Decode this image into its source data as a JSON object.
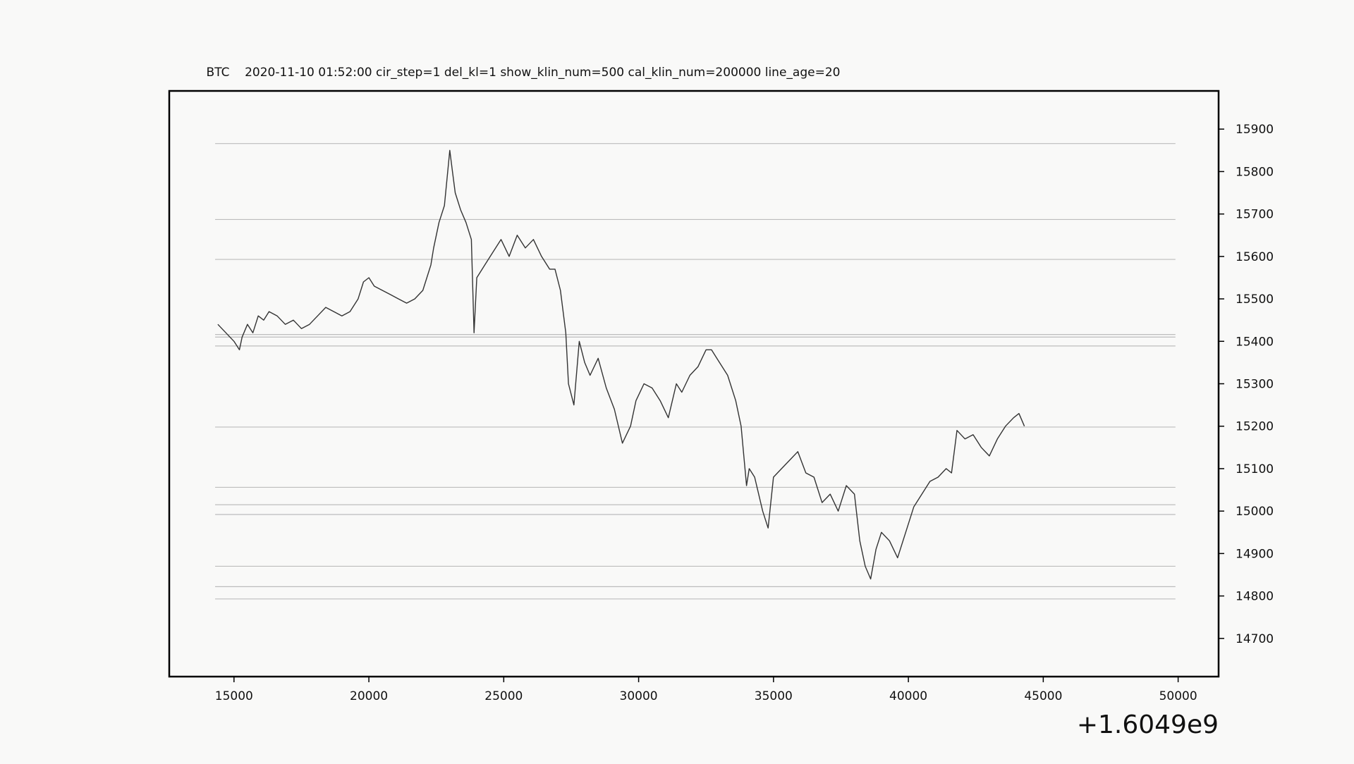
{
  "chart_data": {
    "type": "line",
    "title": "BTC    2020-11-10 01:52:00 cir_step=1 del_kl=1 show_klin_num=500 cal_klin_num=200000 line_age=20",
    "xlabel": "",
    "ylabel": "",
    "x_offset_label": "+1.6049e9",
    "xlim": [
      12600,
      51500
    ],
    "ylim": [
      14610,
      15990
    ],
    "x_ticks": [
      15000,
      20000,
      25000,
      30000,
      35000,
      40000,
      45000,
      50000
    ],
    "x_tick_labels": [
      "15000",
      "20000",
      "25000",
      "30000",
      "35000",
      "40000",
      "45000",
      "50000"
    ],
    "y_ticks": [
      14700,
      14800,
      14900,
      15000,
      15100,
      15200,
      15300,
      15400,
      15500,
      15600,
      15700,
      15800,
      15900
    ],
    "y_tick_labels": [
      "14700",
      "14800",
      "14900",
      "15000",
      "15100",
      "15200",
      "15300",
      "15400",
      "15500",
      "15600",
      "15700",
      "15800",
      "15900"
    ],
    "y_axis_side": "right",
    "grid": false,
    "colors": {
      "series": "#333333",
      "levels": "#bdbdbd",
      "background": "#f9f9f8",
      "frame": "#000000"
    },
    "series": [
      {
        "x": [
          14400,
          14700,
          15000,
          15200,
          15300,
          15500,
          15700,
          15900,
          16100,
          16300,
          16600,
          16900,
          17200,
          17500,
          17800,
          18100,
          18400,
          18700,
          19000,
          19300,
          19600,
          19800,
          20000,
          20200,
          20500,
          20800,
          21100,
          21400,
          21700,
          22000,
          22300,
          22400,
          22600,
          22800,
          23000,
          23100,
          23200,
          23400,
          23600,
          23800,
          23900,
          24000,
          24300,
          24600,
          24900,
          25200,
          25500,
          25800,
          26100,
          26400,
          26700,
          26900,
          27100,
          27300,
          27400,
          27600,
          27800,
          28000,
          28200,
          28500,
          28800,
          29100,
          29400,
          29700,
          29900,
          30200,
          30500,
          30800,
          31100,
          31400,
          31600,
          31900,
          32200,
          32500,
          32700,
          33000,
          33300,
          33600,
          33800,
          34000,
          34100,
          34300,
          34600,
          34800,
          35000,
          35300,
          35600,
          35900,
          36200,
          36500,
          36800,
          37100,
          37400,
          37700,
          38000,
          38200,
          38400,
          38600,
          38800,
          39000,
          39300,
          39600,
          39900,
          40200,
          40500,
          40800,
          41100,
          41400,
          41600,
          41800,
          42100,
          42400,
          42700,
          43000,
          43300,
          43600,
          43900,
          44100,
          44300
        ],
        "y": [
          15440,
          15420,
          15400,
          15380,
          15410,
          15440,
          15420,
          15460,
          15450,
          15470,
          15460,
          15440,
          15450,
          15430,
          15440,
          15460,
          15480,
          15470,
          15460,
          15470,
          15500,
          15540,
          15550,
          15530,
          15520,
          15510,
          15500,
          15490,
          15500,
          15520,
          15580,
          15620,
          15680,
          15720,
          15850,
          15800,
          15750,
          15710,
          15680,
          15640,
          15420,
          15550,
          15580,
          15610,
          15640,
          15600,
          15650,
          15620,
          15640,
          15600,
          15570,
          15570,
          15520,
          15420,
          15300,
          15250,
          15400,
          15350,
          15320,
          15360,
          15290,
          15240,
          15160,
          15200,
          15260,
          15300,
          15290,
          15260,
          15220,
          15300,
          15280,
          15320,
          15340,
          15380,
          15380,
          15350,
          15320,
          15260,
          15200,
          15060,
          15100,
          15080,
          15000,
          14960,
          15080,
          15100,
          15120,
          15140,
          15090,
          15080,
          15020,
          15040,
          15000,
          15060,
          15040,
          14930,
          14870,
          14840,
          14910,
          14950,
          14930,
          14890,
          14950,
          15010,
          15040,
          15070,
          15080,
          15100,
          15090,
          15190,
          15170,
          15180,
          15150,
          15130,
          15170,
          15200,
          15220,
          15230,
          15200
        ]
      }
    ],
    "horizontal_levels": [
      15866,
      15687,
      15593,
      15416,
      15410,
      15389,
      15198,
      15056,
      15015,
      14992,
      14870,
      14822,
      14793
    ]
  }
}
